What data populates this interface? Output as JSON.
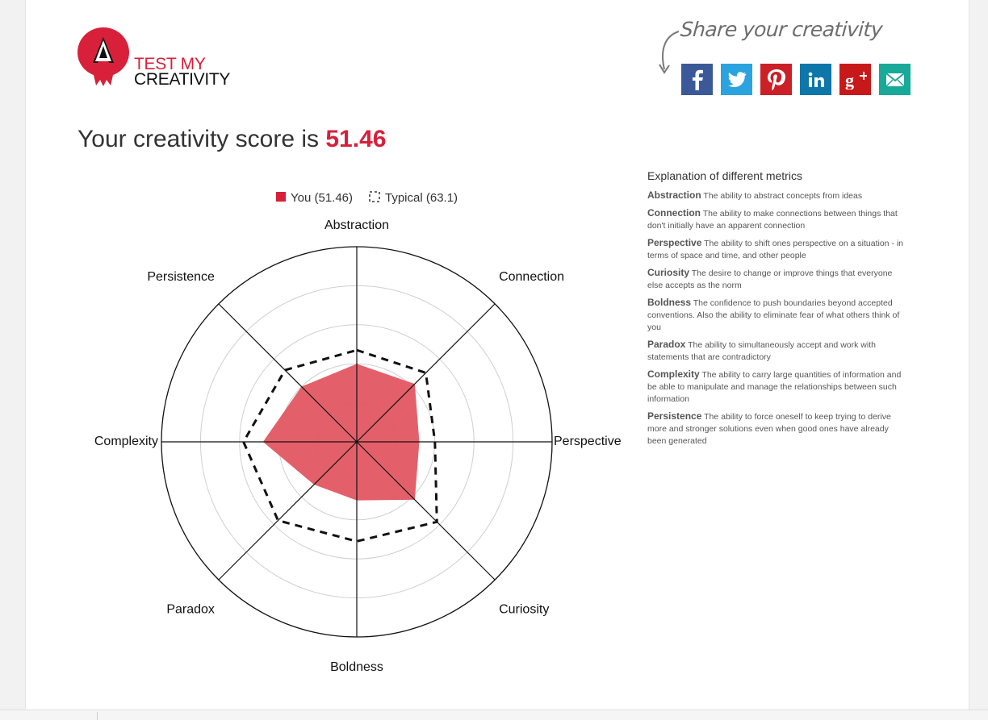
{
  "logo": {
    "line1": "TEST MY",
    "line2": "CREATIVITY",
    "letter": "A"
  },
  "share": {
    "heading": "Share your creativity",
    "buttons": [
      {
        "name": "facebook",
        "color": "#3b5998"
      },
      {
        "name": "twitter",
        "color": "#2aa3de"
      },
      {
        "name": "pinterest",
        "color": "#cb2027"
      },
      {
        "name": "linkedin",
        "color": "#0e76a8"
      },
      {
        "name": "google-plus",
        "color": "#c8191a"
      },
      {
        "name": "email",
        "color": "#18a999"
      }
    ]
  },
  "score": {
    "prefix": "Your creativity score is",
    "value": "51.46"
  },
  "chart_data": {
    "type": "radar",
    "axes": [
      "Abstraction",
      "Connection",
      "Perspective",
      "Curiosity",
      "Boldness",
      "Paradox",
      "Complexity",
      "Persistence"
    ],
    "range": [
      0,
      100
    ],
    "rings": 5,
    "series": [
      {
        "name": "You (51.46)",
        "values": [
          40,
          42,
          32,
          42,
          30,
          31,
          48,
          40
        ],
        "fill": "#e25762",
        "legend_color": "#d8203a"
      },
      {
        "name": "Typical (63.1)",
        "values": [
          47,
          50,
          40,
          58,
          51,
          57,
          58,
          52
        ],
        "dashed": true,
        "stroke": "#111111"
      }
    ],
    "legend_placement": "top-center"
  },
  "explanation": {
    "title": "Explanation of different metrics",
    "metrics": [
      {
        "name": "Abstraction",
        "desc": "The ability to abstract concepts from ideas"
      },
      {
        "name": "Connection",
        "desc": "The ability to make connections between things that don't initially have an apparent connection"
      },
      {
        "name": "Perspective",
        "desc": "The ability to shift ones perspective on a situation - in terms of space and time, and other people"
      },
      {
        "name": "Curiosity",
        "desc": "The desire to change or improve things that everyone else accepts as the norm"
      },
      {
        "name": "Boldness",
        "desc": "The confidence to push boundaries beyond accepted conventions. Also the ability to eliminate fear of what others think of you"
      },
      {
        "name": "Paradox",
        "desc": "The ability to simultaneously accept and work with statements that are contradictory"
      },
      {
        "name": "Complexity",
        "desc": "The ability to carry large quantities of information and be able to manipulate and manage the relationships between such information"
      },
      {
        "name": "Persistence",
        "desc": "The ability to force oneself to keep trying to derive more and stronger solutions even when good ones have already been generated"
      }
    ]
  }
}
